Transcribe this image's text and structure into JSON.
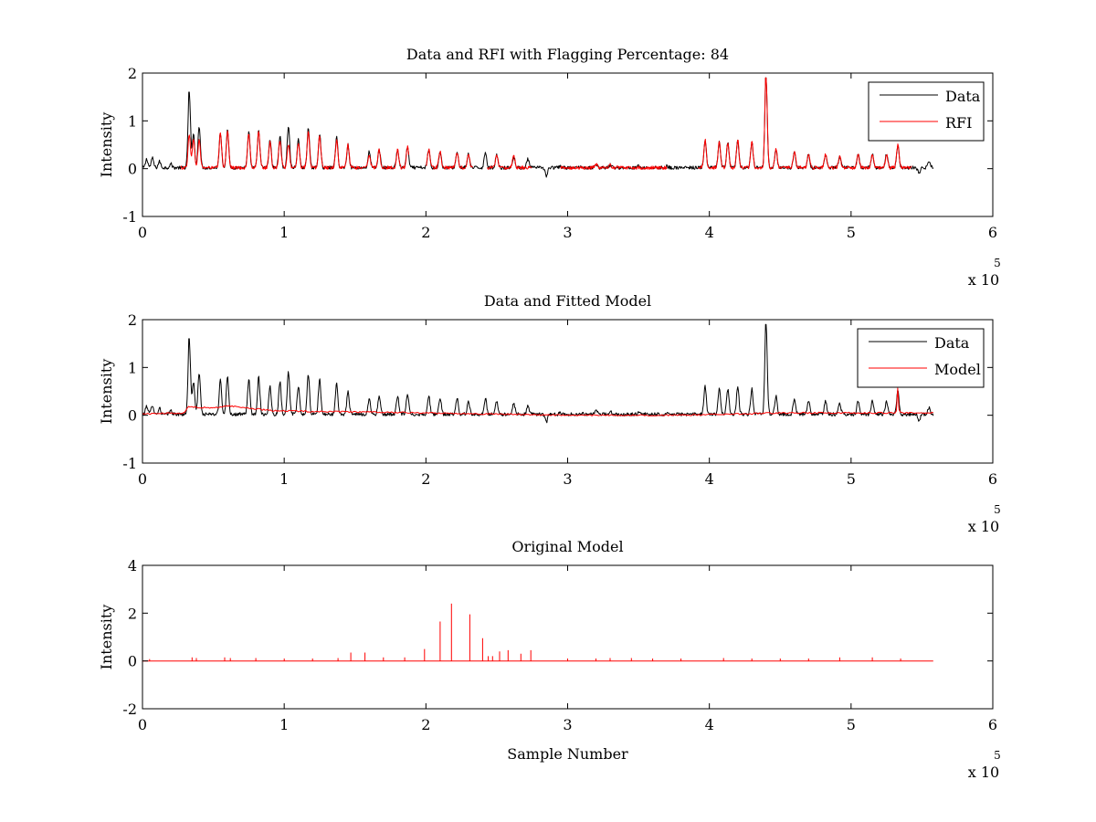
{
  "chart_data": [
    {
      "type": "line",
      "title": "Data and RFI with Flagging Percentage: 84",
      "xlabel": "",
      "ylabel": "Intensity",
      "xlim": [
        0,
        6
      ],
      "ylim": [
        -1,
        2
      ],
      "xticks": [
        "0",
        "1",
        "2",
        "3",
        "4",
        "5",
        "6"
      ],
      "yticks": [
        "-1",
        "0",
        "1",
        "2"
      ],
      "x_exponent_base": "x 10",
      "x_exponent_power": "5",
      "grid": false,
      "legend_position": "top-right",
      "x_range": [
        0,
        5.58
      ],
      "series": [
        {
          "name": "Data",
          "color": "#000000",
          "baseline": 0.02,
          "peaks": [
            [
              0.03,
              0.2
            ],
            [
              0.07,
              0.22
            ],
            [
              0.12,
              0.15
            ],
            [
              0.2,
              0.1
            ],
            [
              0.33,
              1.6
            ],
            [
              0.36,
              0.7
            ],
            [
              0.4,
              0.9
            ],
            [
              0.55,
              0.75
            ],
            [
              0.6,
              0.8
            ],
            [
              0.75,
              0.75
            ],
            [
              0.82,
              0.8
            ],
            [
              0.9,
              0.6
            ],
            [
              0.97,
              0.7
            ],
            [
              1.03,
              0.9
            ],
            [
              1.1,
              0.6
            ],
            [
              1.17,
              0.85
            ],
            [
              1.25,
              0.75
            ],
            [
              1.37,
              0.65
            ],
            [
              1.45,
              0.5
            ],
            [
              1.6,
              0.35
            ],
            [
              1.67,
              0.4
            ],
            [
              1.8,
              0.4
            ],
            [
              1.87,
              0.45
            ],
            [
              2.02,
              0.4
            ],
            [
              2.1,
              0.35
            ],
            [
              2.22,
              0.35
            ],
            [
              2.3,
              0.3
            ],
            [
              2.42,
              0.35
            ],
            [
              2.5,
              0.3
            ],
            [
              2.62,
              0.25
            ],
            [
              2.72,
              0.2
            ],
            [
              2.85,
              -0.15
            ],
            [
              2.95,
              0.05
            ],
            [
              3.1,
              0.05
            ],
            [
              3.2,
              0.1
            ],
            [
              3.3,
              0.08
            ],
            [
              3.5,
              0.05
            ],
            [
              3.7,
              0.05
            ],
            [
              3.97,
              0.6
            ],
            [
              4.07,
              0.55
            ],
            [
              4.13,
              0.55
            ],
            [
              4.2,
              0.6
            ],
            [
              4.3,
              0.55
            ],
            [
              4.4,
              1.9
            ],
            [
              4.47,
              0.4
            ],
            [
              4.6,
              0.35
            ],
            [
              4.7,
              0.3
            ],
            [
              4.82,
              0.3
            ],
            [
              4.92,
              0.25
            ],
            [
              5.05,
              0.3
            ],
            [
              5.15,
              0.3
            ],
            [
              5.25,
              0.3
            ],
            [
              5.33,
              0.5
            ],
            [
              5.48,
              -0.1
            ],
            [
              5.55,
              0.15
            ]
          ]
        },
        {
          "name": "RFI",
          "color": "#ff0000",
          "baseline": 0.02,
          "start": 0.27,
          "gaps": [
            [
              1.88,
              2.0
            ],
            [
              2.33,
              2.43
            ],
            [
              2.75,
              2.95
            ],
            [
              3.7,
              3.92
            ],
            [
              5.43,
              5.58
            ]
          ],
          "peaks": [
            [
              0.33,
              0.7
            ],
            [
              0.36,
              0.6
            ],
            [
              0.4,
              0.6
            ],
            [
              0.55,
              0.75
            ],
            [
              0.6,
              0.8
            ],
            [
              0.75,
              0.75
            ],
            [
              0.82,
              0.8
            ],
            [
              0.9,
              0.55
            ],
            [
              0.97,
              0.6
            ],
            [
              1.03,
              0.5
            ],
            [
              1.1,
              0.55
            ],
            [
              1.17,
              0.75
            ],
            [
              1.25,
              0.7
            ],
            [
              1.37,
              0.6
            ],
            [
              1.45,
              0.5
            ],
            [
              1.6,
              0.3
            ],
            [
              1.67,
              0.4
            ],
            [
              1.8,
              0.4
            ],
            [
              1.87,
              0.45
            ],
            [
              2.02,
              0.4
            ],
            [
              2.1,
              0.35
            ],
            [
              2.22,
              0.35
            ],
            [
              2.3,
              0.3
            ],
            [
              2.5,
              0.3
            ],
            [
              2.62,
              0.25
            ],
            [
              3.2,
              0.1
            ],
            [
              3.3,
              0.08
            ],
            [
              3.97,
              0.6
            ],
            [
              4.07,
              0.55
            ],
            [
              4.13,
              0.55
            ],
            [
              4.2,
              0.6
            ],
            [
              4.3,
              0.55
            ],
            [
              4.4,
              1.9
            ],
            [
              4.47,
              0.4
            ],
            [
              4.6,
              0.35
            ],
            [
              4.7,
              0.3
            ],
            [
              4.82,
              0.3
            ],
            [
              4.92,
              0.25
            ],
            [
              5.05,
              0.3
            ],
            [
              5.15,
              0.3
            ],
            [
              5.25,
              0.3
            ],
            [
              5.33,
              0.5
            ]
          ]
        }
      ]
    },
    {
      "type": "line",
      "title": "Data and Fitted Model",
      "xlabel": "",
      "ylabel": "Intensity",
      "xlim": [
        0,
        6
      ],
      "ylim": [
        -1,
        2
      ],
      "xticks": [
        "0",
        "1",
        "2",
        "3",
        "4",
        "5",
        "6"
      ],
      "yticks": [
        "-1",
        "0",
        "1",
        "2"
      ],
      "x_exponent_base": "x 10",
      "x_exponent_power": "5",
      "grid": false,
      "legend_position": "top-right",
      "x_range": [
        0,
        5.58
      ],
      "series": [
        {
          "name": "Data",
          "color": "#000000",
          "baseline": 0.02,
          "peaks": [
            [
              0.03,
              0.2
            ],
            [
              0.07,
              0.22
            ],
            [
              0.12,
              0.15
            ],
            [
              0.2,
              0.1
            ],
            [
              0.33,
              1.6
            ],
            [
              0.36,
              0.7
            ],
            [
              0.4,
              0.9
            ],
            [
              0.55,
              0.75
            ],
            [
              0.6,
              0.8
            ],
            [
              0.75,
              0.75
            ],
            [
              0.82,
              0.8
            ],
            [
              0.9,
              0.6
            ],
            [
              0.97,
              0.7
            ],
            [
              1.03,
              0.9
            ],
            [
              1.1,
              0.6
            ],
            [
              1.17,
              0.85
            ],
            [
              1.25,
              0.75
            ],
            [
              1.37,
              0.65
            ],
            [
              1.45,
              0.5
            ],
            [
              1.6,
              0.35
            ],
            [
              1.67,
              0.4
            ],
            [
              1.8,
              0.4
            ],
            [
              1.87,
              0.45
            ],
            [
              2.02,
              0.4
            ],
            [
              2.1,
              0.35
            ],
            [
              2.22,
              0.35
            ],
            [
              2.3,
              0.3
            ],
            [
              2.42,
              0.35
            ],
            [
              2.5,
              0.3
            ],
            [
              2.62,
              0.25
            ],
            [
              2.72,
              0.2
            ],
            [
              2.85,
              -0.15
            ],
            [
              2.95,
              0.05
            ],
            [
              3.1,
              0.05
            ],
            [
              3.2,
              0.1
            ],
            [
              3.3,
              0.08
            ],
            [
              3.5,
              0.05
            ],
            [
              3.7,
              0.05
            ],
            [
              3.97,
              0.6
            ],
            [
              4.07,
              0.55
            ],
            [
              4.13,
              0.55
            ],
            [
              4.2,
              0.6
            ],
            [
              4.3,
              0.55
            ],
            [
              4.4,
              1.9
            ],
            [
              4.47,
              0.4
            ],
            [
              4.6,
              0.35
            ],
            [
              4.7,
              0.3
            ],
            [
              4.82,
              0.3
            ],
            [
              4.92,
              0.25
            ],
            [
              5.05,
              0.3
            ],
            [
              5.15,
              0.3
            ],
            [
              5.25,
              0.3
            ],
            [
              5.33,
              0.5
            ],
            [
              5.48,
              -0.1
            ],
            [
              5.55,
              0.15
            ]
          ]
        },
        {
          "name": "Model",
          "color": "#ff0000",
          "points": [
            [
              0,
              0.03
            ],
            [
              0.3,
              0.05
            ],
            [
              0.32,
              0.18
            ],
            [
              0.5,
              0.15
            ],
            [
              0.6,
              0.2
            ],
            [
              0.9,
              0.1
            ],
            [
              1.2,
              0.08
            ],
            [
              2.0,
              0.05
            ],
            [
              3.0,
              0.0
            ],
            [
              3.8,
              0.0
            ],
            [
              4.5,
              0.05
            ],
            [
              5.0,
              0.05
            ],
            [
              5.3,
              0.05
            ],
            [
              5.58,
              0.05
            ]
          ],
          "peaks": [
            [
              5.33,
              0.55
            ]
          ]
        }
      ]
    },
    {
      "type": "line",
      "title": "Original Model",
      "xlabel": "Sample Number",
      "ylabel": "Intensity",
      "xlim": [
        0,
        6
      ],
      "ylim": [
        -2,
        4
      ],
      "xticks": [
        "0",
        "1",
        "2",
        "3",
        "4",
        "5",
        "6"
      ],
      "yticks": [
        "-2",
        "0",
        "2",
        "4"
      ],
      "x_exponent_base": "x 10",
      "x_exponent_power": "5",
      "grid": false,
      "x_range": [
        0,
        5.58
      ],
      "series": [
        {
          "color": "#ff0000",
          "baseline": 0.0,
          "spikes": [
            [
              0.05,
              0.08
            ],
            [
              0.35,
              0.15
            ],
            [
              0.38,
              0.12
            ],
            [
              0.58,
              0.15
            ],
            [
              0.62,
              0.12
            ],
            [
              0.8,
              0.12
            ],
            [
              1.0,
              0.1
            ],
            [
              1.2,
              0.1
            ],
            [
              1.38,
              0.12
            ],
            [
              1.47,
              0.35
            ],
            [
              1.57,
              0.35
            ],
            [
              1.7,
              0.15
            ],
            [
              1.85,
              0.15
            ],
            [
              1.99,
              0.5
            ],
            [
              2.1,
              1.65
            ],
            [
              2.18,
              2.4
            ],
            [
              2.31,
              1.95
            ],
            [
              2.4,
              0.95
            ],
            [
              2.44,
              0.2
            ],
            [
              2.47,
              0.2
            ],
            [
              2.52,
              0.4
            ],
            [
              2.58,
              0.45
            ],
            [
              2.67,
              0.3
            ],
            [
              2.74,
              0.45
            ],
            [
              3.0,
              0.1
            ],
            [
              3.2,
              0.1
            ],
            [
              3.3,
              0.12
            ],
            [
              3.45,
              0.12
            ],
            [
              3.6,
              0.1
            ],
            [
              3.8,
              0.1
            ],
            [
              4.1,
              0.12
            ],
            [
              4.3,
              0.1
            ],
            [
              4.5,
              0.1
            ],
            [
              4.7,
              0.1
            ],
            [
              4.92,
              0.15
            ],
            [
              5.15,
              0.15
            ],
            [
              5.35,
              0.1
            ]
          ]
        }
      ]
    }
  ]
}
